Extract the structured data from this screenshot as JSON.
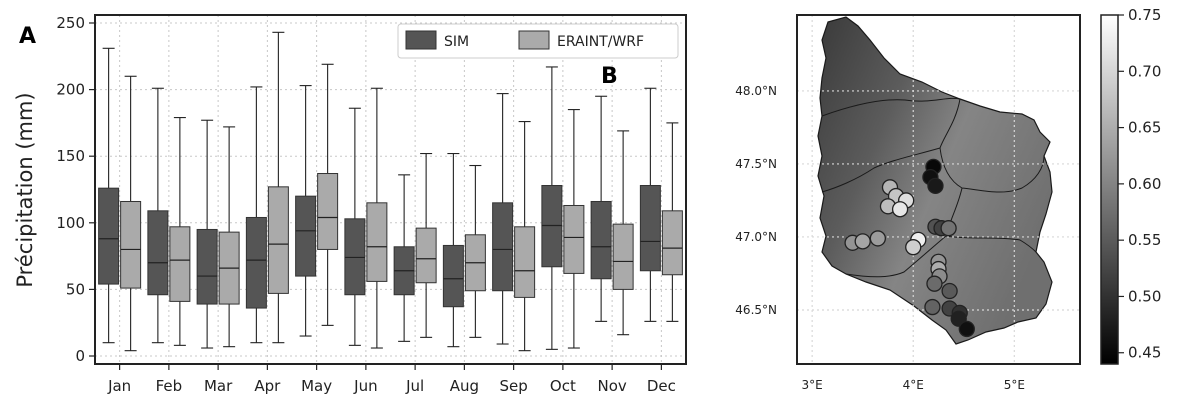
{
  "panel_labels": {
    "a": "A",
    "b": "B"
  },
  "colors": {
    "sim": "#555555",
    "eraint": "#aaaaaa",
    "grid": "#c8c8c8",
    "axis": "#222222"
  },
  "chart_data": [
    {
      "type": "box",
      "ylabel": "Précipitation (mm)",
      "ylim": [
        -6,
        256
      ],
      "yticks": [
        0,
        50,
        100,
        150,
        200,
        250
      ],
      "grid": true,
      "legend": {
        "placement": "top-right",
        "entries": [
          "SIM",
          "ERAINT/WRF"
        ]
      },
      "categories": [
        "Jan",
        "Feb",
        "Mar",
        "Apr",
        "May",
        "Jun",
        "Jul",
        "Aug",
        "Sep",
        "Oct",
        "Nov",
        "Dec"
      ],
      "series": [
        {
          "name": "SIM",
          "boxes": [
            {
              "min": 10,
              "q1": 54,
              "median": 88,
              "q3": 126,
              "max": 231
            },
            {
              "min": 10,
              "q1": 46,
              "median": 70,
              "q3": 109,
              "max": 201
            },
            {
              "min": 6,
              "q1": 39,
              "median": 60,
              "q3": 95,
              "max": 177
            },
            {
              "min": 10,
              "q1": 36,
              "median": 72,
              "q3": 104,
              "max": 202
            },
            {
              "min": 15,
              "q1": 60,
              "median": 94,
              "q3": 120,
              "max": 203
            },
            {
              "min": 8,
              "q1": 46,
              "median": 74,
              "q3": 103,
              "max": 186
            },
            {
              "min": 11,
              "q1": 46,
              "median": 64,
              "q3": 82,
              "max": 136
            },
            {
              "min": 7,
              "q1": 37,
              "median": 58,
              "q3": 83,
              "max": 152
            },
            {
              "min": 9,
              "q1": 49,
              "median": 80,
              "q3": 115,
              "max": 197
            },
            {
              "min": 5,
              "q1": 67,
              "median": 98,
              "q3": 128,
              "max": 217
            },
            {
              "min": 26,
              "q1": 58,
              "median": 82,
              "q3": 116,
              "max": 195
            },
            {
              "min": 26,
              "q1": 64,
              "median": 86,
              "q3": 128,
              "max": 201
            }
          ]
        },
        {
          "name": "ERAINT/WRF",
          "boxes": [
            {
              "min": 4,
              "q1": 51,
              "median": 80,
              "q3": 116,
              "max": 210
            },
            {
              "min": 8,
              "q1": 41,
              "median": 72,
              "q3": 97,
              "max": 179
            },
            {
              "min": 7,
              "q1": 39,
              "median": 66,
              "q3": 93,
              "max": 172
            },
            {
              "min": 10,
              "q1": 47,
              "median": 84,
              "q3": 127,
              "max": 243
            },
            {
              "min": 23,
              "q1": 80,
              "median": 104,
              "q3": 137,
              "max": 219
            },
            {
              "min": 6,
              "q1": 56,
              "median": 82,
              "q3": 115,
              "max": 201
            },
            {
              "min": 14,
              "q1": 55,
              "median": 73,
              "q3": 96,
              "max": 152
            },
            {
              "min": 14,
              "q1": 49,
              "median": 70,
              "q3": 91,
              "max": 143
            },
            {
              "min": 4,
              "q1": 44,
              "median": 64,
              "q3": 97,
              "max": 176
            },
            {
              "min": 6,
              "q1": 62,
              "median": 89,
              "q3": 113,
              "max": 185
            },
            {
              "min": 16,
              "q1": 50,
              "median": 71,
              "q3": 99,
              "max": 169
            },
            {
              "min": 26,
              "q1": 61,
              "median": 81,
              "q3": 109,
              "max": 175
            }
          ]
        }
      ]
    },
    {
      "type": "scatter",
      "xlim": [
        2.85,
        5.65
      ],
      "ylim": [
        46.13,
        48.52
      ],
      "xticks": [
        {
          "v": 3.0,
          "label": "3°E"
        },
        {
          "v": 4.0,
          "label": "4°E"
        },
        {
          "v": 5.0,
          "label": "5°E"
        }
      ],
      "yticks": [
        {
          "v": 46.5,
          "label": "46.5°N"
        },
        {
          "v": 47.0,
          "label": "47.0°N"
        },
        {
          "v": 47.5,
          "label": "47.5°N"
        },
        {
          "v": 48.0,
          "label": "48.0°N"
        }
      ],
      "grid": true,
      "colorbar": {
        "min": 0.44,
        "max": 0.75,
        "ticks": [
          "0.45",
          "0.50",
          "0.55",
          "0.60",
          "0.65",
          "0.70",
          "0.75"
        ],
        "tick_values": [
          0.45,
          0.5,
          0.55,
          0.6,
          0.65,
          0.7,
          0.75
        ]
      },
      "points": [
        {
          "lon": 4.2,
          "lat": 47.48,
          "v": 0.45
        },
        {
          "lon": 4.17,
          "lat": 47.41,
          "v": 0.46
        },
        {
          "lon": 4.22,
          "lat": 47.35,
          "v": 0.47
        },
        {
          "lon": 3.77,
          "lat": 47.34,
          "v": 0.66
        },
        {
          "lon": 3.83,
          "lat": 47.28,
          "v": 0.68
        },
        {
          "lon": 3.93,
          "lat": 47.25,
          "v": 0.71
        },
        {
          "lon": 3.75,
          "lat": 47.21,
          "v": 0.67
        },
        {
          "lon": 3.87,
          "lat": 47.19,
          "v": 0.72
        },
        {
          "lon": 4.22,
          "lat": 47.07,
          "v": 0.54
        },
        {
          "lon": 4.28,
          "lat": 47.06,
          "v": 0.52
        },
        {
          "lon": 4.35,
          "lat": 47.06,
          "v": 0.58
        },
        {
          "lon": 4.05,
          "lat": 46.98,
          "v": 0.73
        },
        {
          "lon": 4.0,
          "lat": 46.93,
          "v": 0.69
        },
        {
          "lon": 3.4,
          "lat": 46.96,
          "v": 0.62
        },
        {
          "lon": 3.5,
          "lat": 46.97,
          "v": 0.64
        },
        {
          "lon": 3.65,
          "lat": 46.99,
          "v": 0.63
        },
        {
          "lon": 4.25,
          "lat": 46.83,
          "v": 0.62
        },
        {
          "lon": 4.25,
          "lat": 46.78,
          "v": 0.65
        },
        {
          "lon": 4.26,
          "lat": 46.73,
          "v": 0.61
        },
        {
          "lon": 4.21,
          "lat": 46.68,
          "v": 0.57
        },
        {
          "lon": 4.36,
          "lat": 46.63,
          "v": 0.55
        },
        {
          "lon": 4.19,
          "lat": 46.52,
          "v": 0.56
        },
        {
          "lon": 4.36,
          "lat": 46.51,
          "v": 0.52
        },
        {
          "lon": 4.46,
          "lat": 46.48,
          "v": 0.5
        },
        {
          "lon": 4.45,
          "lat": 46.44,
          "v": 0.48
        },
        {
          "lon": 4.53,
          "lat": 46.37,
          "v": 0.46
        }
      ]
    }
  ]
}
